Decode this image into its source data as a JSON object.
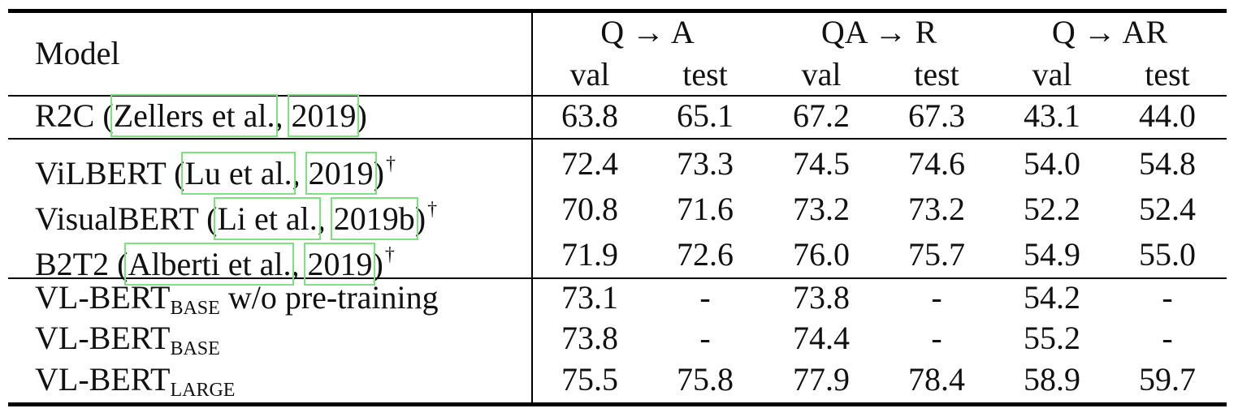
{
  "table": {
    "header": {
      "model": "Model",
      "groups": [
        "Q → A",
        "QA → R",
        "Q → AR"
      ],
      "sub": [
        "val",
        "test",
        "val",
        "test",
        "val",
        "test"
      ]
    },
    "rows": [
      {
        "parts": [
          "R2C (",
          "Zellers et al.",
          ", ",
          "2019",
          ")"
        ],
        "dagger": "",
        "vals": [
          "63.8",
          "65.1",
          "67.2",
          "67.3",
          "43.1",
          "44.0"
        ]
      },
      {
        "parts": [
          "ViLBERT (",
          "Lu et al.",
          ", ",
          "2019",
          ")"
        ],
        "dagger": "†",
        "vals": [
          "72.4",
          "73.3",
          "74.5",
          "74.6",
          "54.0",
          "54.8"
        ]
      },
      {
        "parts": [
          "VisualBERT (",
          "Li et al.",
          ", ",
          "2019b",
          ")"
        ],
        "dagger": "†",
        "vals": [
          "70.8",
          "71.6",
          "73.2",
          "73.2",
          "52.2",
          "52.4"
        ]
      },
      {
        "parts": [
          "B2T2 (",
          "Alberti et al.",
          ", ",
          "2019",
          ")"
        ],
        "dagger": "†",
        "vals": [
          "71.9",
          "72.6",
          "76.0",
          "75.7",
          "54.9",
          "55.0"
        ]
      },
      {
        "base": "VL-BERT",
        "sub": "BASE",
        "suffix": " w/o pre-training",
        "vals": [
          "73.1",
          "-",
          "73.8",
          "-",
          "54.2",
          "-"
        ]
      },
      {
        "base": "VL-BERT",
        "sub": "BASE",
        "suffix": "",
        "vals": [
          "73.8",
          "-",
          "74.4",
          "-",
          "55.2",
          "-"
        ]
      },
      {
        "base": "VL-BERT",
        "sub": "LARGE",
        "suffix": "",
        "vals": [
          "75.5",
          "75.8",
          "77.9",
          "78.4",
          "58.9",
          "59.7"
        ]
      }
    ]
  }
}
